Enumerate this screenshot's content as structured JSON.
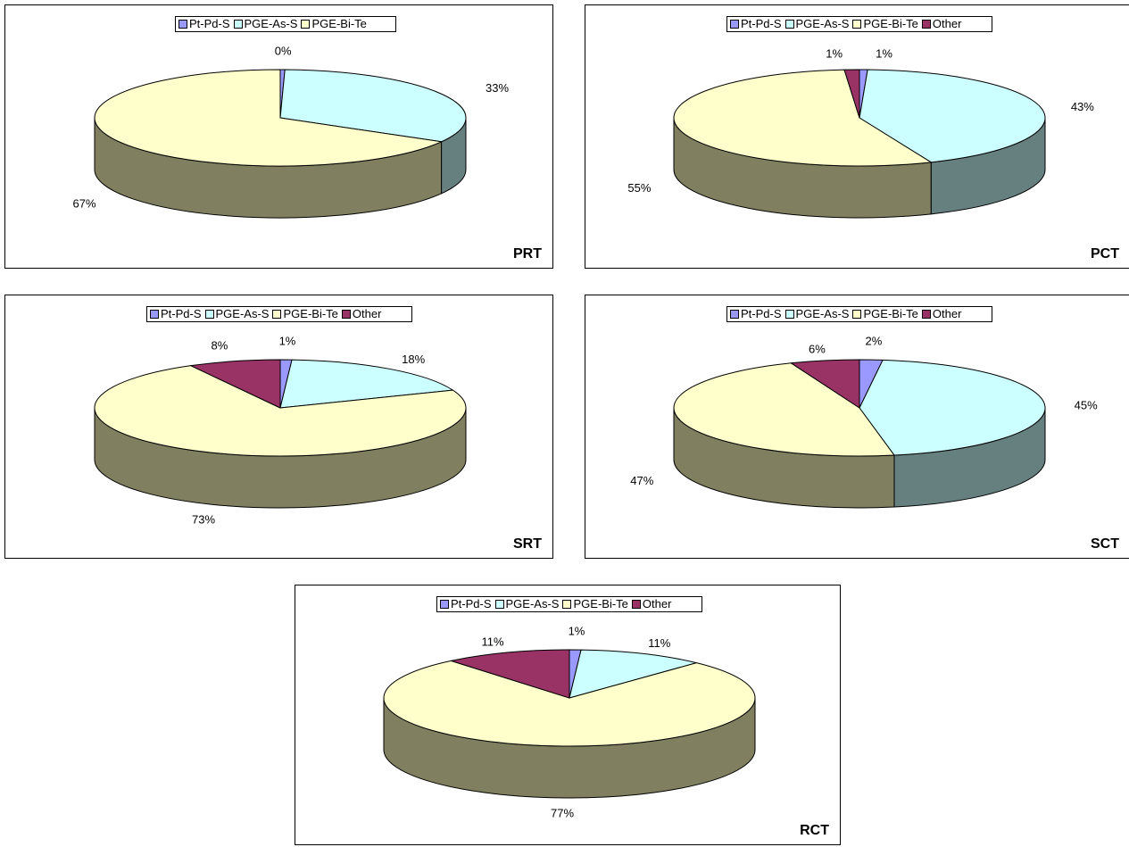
{
  "series_colors": {
    "Pt-Pd-S": "#9999ff",
    "PGE-As-S": "#ccffff",
    "PGE-Bi-Te": "#ffffcc",
    "Other": "#993366"
  },
  "side_colors": {
    "Pt-Pd-S": "#5c5c99",
    "PGE-As-S": "#667f7f",
    "PGE-Bi-Te": "#808060",
    "Other": "#5c1f3d"
  },
  "chart_data": [
    {
      "type": "pie",
      "code": "PRT",
      "legend": [
        "Pt-Pd-S",
        "PGE-As-S",
        "PGE-Bi-Te"
      ],
      "slices": [
        {
          "name": "Pt-Pd-S",
          "value": 0.4,
          "label": "0%"
        },
        {
          "name": "PGE-As-S",
          "value": 33,
          "label": "33%"
        },
        {
          "name": "PGE-Bi-Te",
          "value": 67,
          "label": "67%"
        }
      ]
    },
    {
      "type": "pie",
      "code": "PCT",
      "legend": [
        "Pt-Pd-S",
        "PGE-As-S",
        "PGE-Bi-Te",
        "Other"
      ],
      "slices": [
        {
          "name": "Pt-Pd-S",
          "value": 0.7,
          "label": "1%"
        },
        {
          "name": "PGE-As-S",
          "value": 43,
          "label": "43%"
        },
        {
          "name": "PGE-Bi-Te",
          "value": 55,
          "label": "55%"
        },
        {
          "name": "Other",
          "value": 1.3,
          "label": "1%"
        }
      ]
    },
    {
      "type": "pie",
      "code": "SRT",
      "legend": [
        "Pt-Pd-S",
        "PGE-As-S",
        "PGE-Bi-Te",
        "Other"
      ],
      "slices": [
        {
          "name": "Pt-Pd-S",
          "value": 1,
          "label": "1%"
        },
        {
          "name": "PGE-As-S",
          "value": 18,
          "label": "18%"
        },
        {
          "name": "PGE-Bi-Te",
          "value": 73,
          "label": "73%"
        },
        {
          "name": "Other",
          "value": 8,
          "label": "8%"
        }
      ]
    },
    {
      "type": "pie",
      "code": "SCT",
      "legend": [
        "Pt-Pd-S",
        "PGE-As-S",
        "PGE-Bi-Te",
        "Other"
      ],
      "slices": [
        {
          "name": "Pt-Pd-S",
          "value": 2,
          "label": "2%"
        },
        {
          "name": "PGE-As-S",
          "value": 45,
          "label": "45%"
        },
        {
          "name": "PGE-Bi-Te",
          "value": 47,
          "label": "47%"
        },
        {
          "name": "Other",
          "value": 6,
          "label": "6%"
        }
      ]
    },
    {
      "type": "pie",
      "code": "RCT",
      "legend": [
        "Pt-Pd-S",
        "PGE-As-S",
        "PGE-Bi-Te",
        "Other"
      ],
      "slices": [
        {
          "name": "Pt-Pd-S",
          "value": 1,
          "label": "1%"
        },
        {
          "name": "PGE-As-S",
          "value": 11,
          "label": "11%"
        },
        {
          "name": "PGE-Bi-Te",
          "value": 77,
          "label": "77%"
        },
        {
          "name": "Other",
          "value": 11,
          "label": "11%"
        }
      ]
    }
  ]
}
